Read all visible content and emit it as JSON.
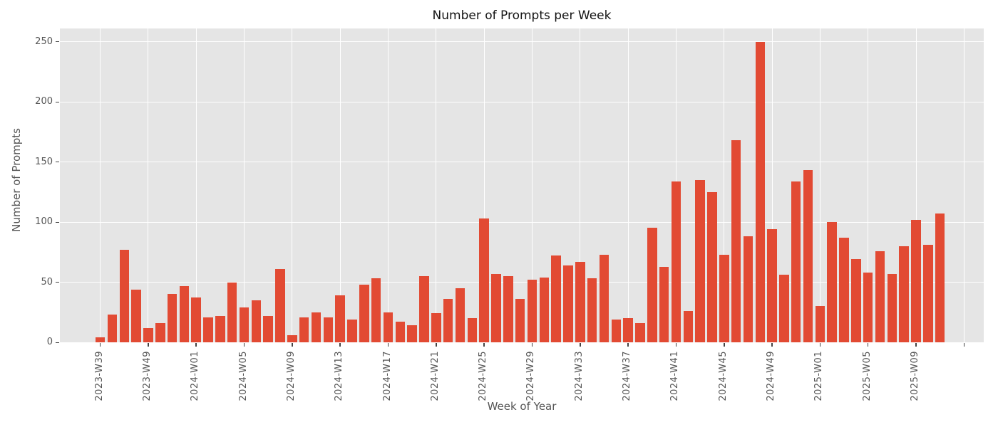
{
  "chart_data": {
    "type": "bar",
    "title": "Number of Prompts per Week",
    "xlabel": "Week of Year",
    "ylabel": "Number of Prompts",
    "values": [
      4,
      23,
      77,
      44,
      12,
      16,
      40,
      47,
      37,
      21,
      22,
      50,
      29,
      35,
      22,
      61,
      6,
      21,
      25,
      21,
      39,
      19,
      48,
      53,
      25,
      17,
      14,
      55,
      24,
      36,
      45,
      20,
      103,
      57,
      55,
      36,
      52,
      54,
      72,
      64,
      67,
      53,
      73,
      19,
      20,
      16,
      95,
      63,
      134,
      26,
      135,
      125,
      73,
      168,
      88,
      250,
      94,
      56,
      134,
      143,
      30,
      100,
      87,
      69,
      58,
      76,
      57,
      80,
      102,
      81,
      107
    ],
    "xtick_every": 4,
    "xtick_labels": [
      "2023-W39",
      "2023-W49",
      "2024-W01",
      "2024-W05",
      "2024-W09",
      "2024-W13",
      "2024-W17",
      "2024-W21",
      "2024-W25",
      "2024-W29",
      "2024-W33",
      "2024-W37",
      "2024-W41",
      "2024-W45",
      "2024-W49",
      "2025-W01",
      "2025-W05",
      "2025-W09",
      ""
    ],
    "yticks": [
      0,
      50,
      100,
      150,
      200,
      250
    ],
    "ylim": [
      0,
      261
    ],
    "grid": true,
    "legend": false,
    "bar_color": "#E24A33",
    "plot_bg_color": "#E5E5E5",
    "grid_color": "#FFFFFF",
    "tick_text_color": "#555555",
    "title_color": "#141414"
  }
}
